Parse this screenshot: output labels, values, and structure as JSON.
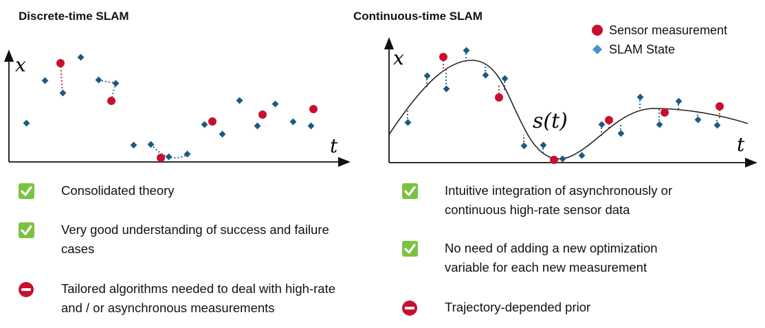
{
  "left": {
    "title": "Discrete-time SLAM",
    "x_label": "x",
    "t_label": "t",
    "items": [
      {
        "icon": "check-icon",
        "lines": [
          "Consolidated theory"
        ]
      },
      {
        "icon": "check-icon",
        "lines": [
          "Very good understanding of success and failure",
          " cases"
        ]
      },
      {
        "icon": "no-entry-icon",
        "lines": [
          "Tailored algorithms needed to deal with high-rate",
          " and / or asynchronous measurements"
        ]
      }
    ]
  },
  "right": {
    "title": "Continuous-time SLAM",
    "x_label": "x",
    "t_label": "t",
    "curve_label": "s(t)",
    "items": [
      {
        "icon": "check-icon",
        "lines": [
          "Intuitive integration of asynchronously or",
          "continuous high-rate sensor data"
        ]
      },
      {
        "icon": "check-icon",
        "lines": [
          "No need of adding a new optimization",
          " variable for each new measurement"
        ]
      },
      {
        "icon": "no-entry-icon",
        "lines": [
          "Trajectory-depended prior"
        ]
      }
    ]
  },
  "legend": {
    "sensor": "Sensor measurement",
    "state": "SLAM State"
  },
  "colors": {
    "measurement": "#c8102e",
    "state": "#1b5a84",
    "state_legend": "#4a8fd1",
    "check": "#7cc242"
  }
}
